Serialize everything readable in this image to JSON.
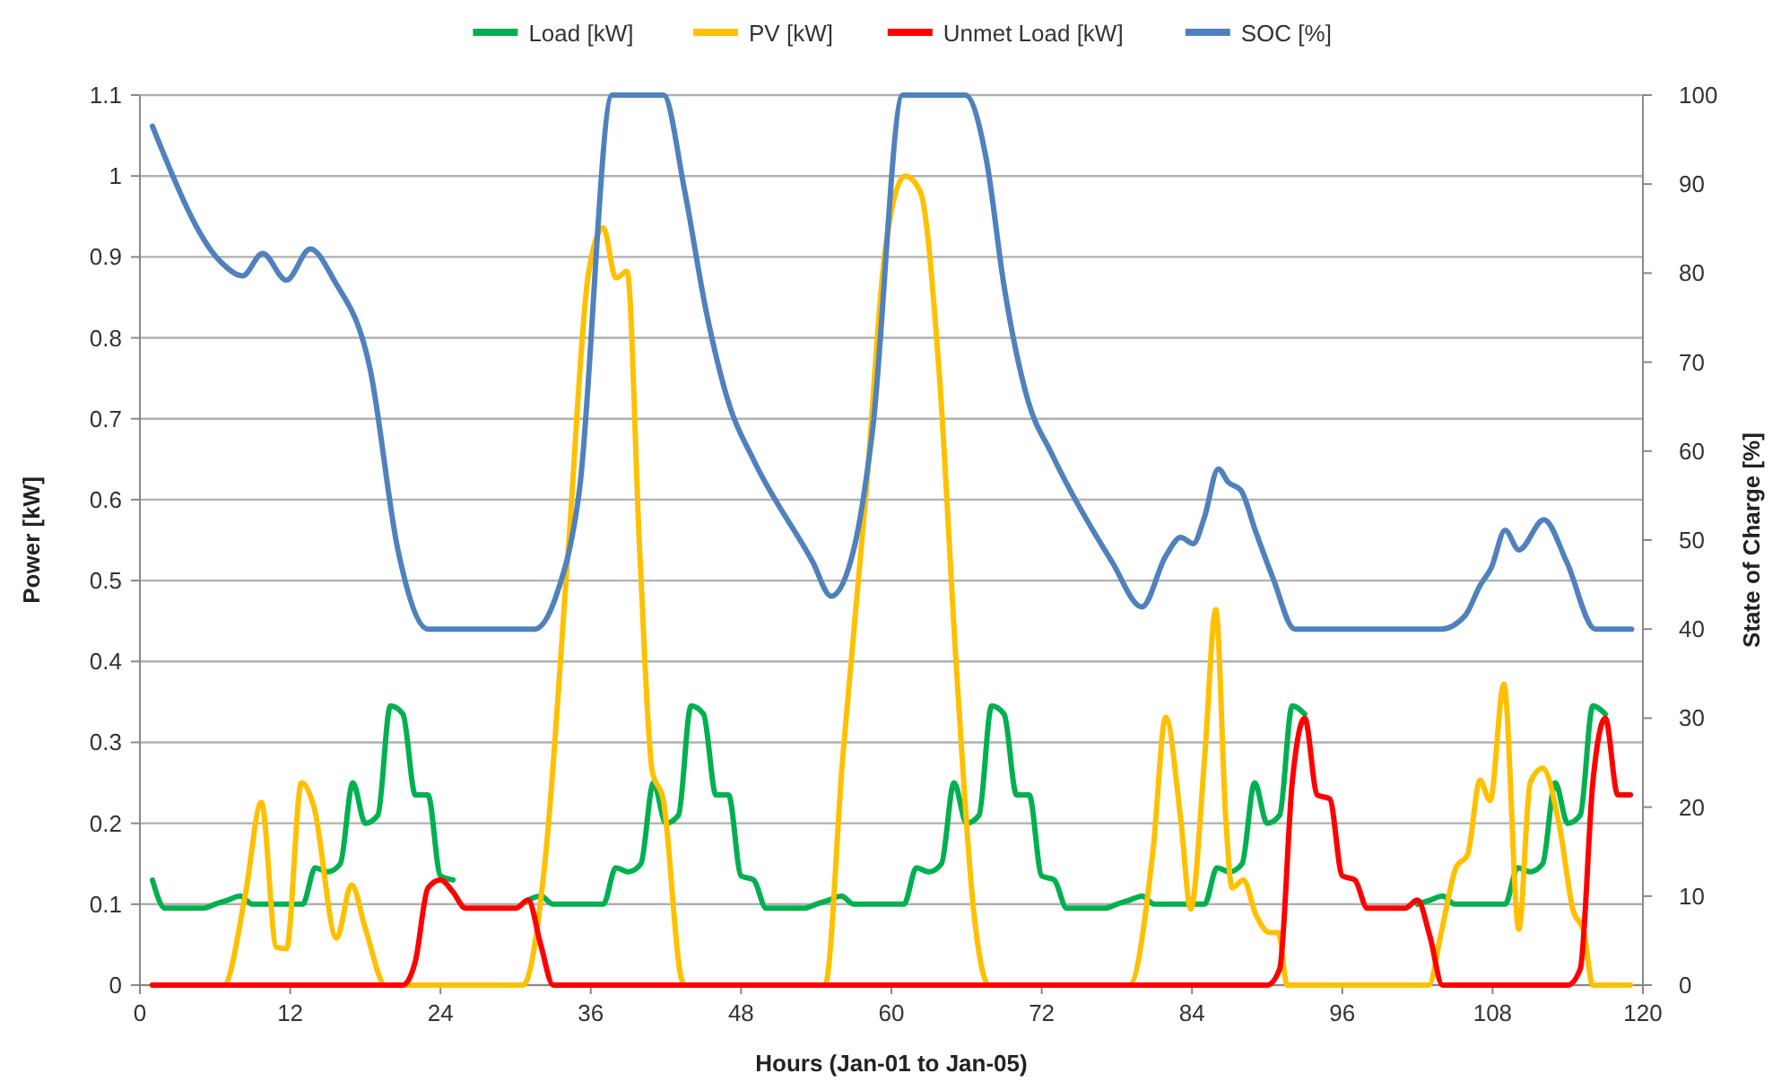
{
  "chart_data": {
    "type": "line",
    "xlabel": "Hours (Jan-01 to Jan-05)",
    "ylabel": "Power [kW]",
    "y2label": "State of Charge [%]",
    "x": [
      1,
      2,
      3,
      4,
      5,
      6,
      7,
      8,
      9,
      10,
      11,
      12,
      13,
      14,
      15,
      16,
      17,
      18,
      19,
      20,
      21,
      22,
      23,
      24,
      25,
      26,
      27,
      28,
      29,
      30,
      31,
      32,
      33,
      34,
      35,
      36,
      37,
      38,
      39,
      40,
      41,
      42,
      43,
      44,
      45,
      46,
      47,
      48,
      49,
      50,
      51,
      52,
      53,
      54,
      55,
      56,
      57,
      58,
      59,
      60,
      61,
      62,
      63,
      64,
      65,
      66,
      67,
      68,
      69,
      70,
      71,
      72,
      73,
      74,
      75,
      76,
      77,
      78,
      79,
      80,
      81,
      82,
      83,
      84,
      85,
      86,
      87,
      88,
      89,
      90,
      91,
      92,
      93,
      94,
      95,
      96,
      97,
      98,
      99,
      100,
      101,
      102,
      103,
      104,
      105,
      106,
      107,
      108,
      109,
      110,
      111,
      112,
      113,
      114,
      115,
      116,
      117,
      118,
      119
    ],
    "xlim": [
      0,
      120
    ],
    "xticks": [
      0,
      12,
      24,
      36,
      48,
      60,
      72,
      84,
      96,
      108,
      120
    ],
    "ylim": [
      0,
      1.1
    ],
    "yticks": [
      0,
      0.1,
      0.2,
      0.3,
      0.4,
      0.5,
      0.6,
      0.7,
      0.8,
      0.9,
      1,
      1.1
    ],
    "y2lim": [
      0,
      100
    ],
    "y2ticks": [
      0,
      10,
      20,
      30,
      40,
      50,
      60,
      70,
      80,
      90,
      100
    ],
    "grid": "y",
    "legend": "top",
    "marker": "none",
    "line_style": "solid",
    "series": [
      {
        "name": "Load [kW]",
        "color": "#00b050",
        "values": [
          0.13,
          0.095,
          0.095,
          0.095,
          0.095,
          0.1,
          0.105,
          0.11,
          0.1,
          0.1,
          0.1,
          0.1,
          0.1,
          0.145,
          0.14,
          0.15,
          0.25,
          0.2,
          0.21,
          0.345,
          0.335,
          0.235,
          0.235,
          0.135,
          0.13,
          null,
          null,
          null,
          null,
          null,
          0.105,
          0.11,
          0.1,
          0.1,
          0.1,
          0.1,
          0.1,
          0.145,
          0.14,
          0.15,
          0.25,
          0.2,
          0.21,
          0.345,
          0.335,
          0.235,
          0.235,
          0.135,
          0.13,
          0.095,
          0.095,
          0.095,
          0.095,
          0.1,
          0.105,
          0.11,
          0.1,
          0.1,
          0.1,
          0.1,
          0.1,
          0.145,
          0.14,
          0.15,
          0.25,
          0.2,
          0.21,
          0.345,
          0.335,
          0.235,
          0.235,
          0.135,
          0.13,
          0.095,
          0.095,
          0.095,
          0.095,
          0.1,
          0.105,
          0.11,
          0.1,
          0.1,
          0.1,
          0.1,
          0.1,
          0.145,
          0.14,
          0.15,
          0.25,
          0.2,
          0.21,
          0.345,
          0.335,
          null,
          null,
          null,
          null,
          null,
          null,
          null,
          null,
          0.1,
          0.105,
          0.11,
          0.1,
          0.1,
          0.1,
          0.1,
          0.1,
          0.145,
          0.14,
          0.15,
          0.25,
          0.2,
          0.21,
          0.345,
          0.335,
          null,
          null
        ]
      },
      {
        "name": "PV [kW]",
        "color": "#ffc000",
        "x": [
          1,
          6.7,
          8.4,
          9.7,
          10.9,
          11.7,
          12.9,
          13.9,
          15.7,
          16.9,
          18,
          19.6,
          30.6,
          32.3,
          34.2,
          35.8,
          37,
          38,
          38.9,
          39.9,
          40.9,
          41.8,
          43.2,
          43.5,
          54.7,
          56.1,
          58,
          59.5,
          61.1,
          62.3,
          63.8,
          65.2,
          66.6,
          67.8,
          79,
          80.9,
          81.9,
          83.1,
          83.9,
          85,
          85.9,
          86.7,
          87.2,
          88.1,
          89.1,
          90.2,
          90.9,
          91.6,
          102.9,
          103.9,
          105.1,
          106,
          107,
          107.8,
          108.9,
          110.1,
          111,
          112,
          113.4,
          114.4,
          115.3,
          116,
          119
        ],
        "values": [
          0,
          0,
          0.11,
          0.226,
          0.047,
          0.045,
          0.25,
          0.22,
          0.058,
          0.124,
          0.07,
          0,
          0,
          0.146,
          0.538,
          0.878,
          0.936,
          0.874,
          0.882,
          0.538,
          0.265,
          0.228,
          0.01,
          0,
          0,
          0.279,
          0.612,
          0.908,
          1,
          0.981,
          0.76,
          0.39,
          0.087,
          0,
          0,
          0.168,
          0.331,
          0.205,
          0.094,
          0.279,
          0.464,
          0.205,
          0.12,
          0.13,
          0.087,
          0.065,
          0.065,
          0,
          0,
          0.065,
          0.146,
          0.161,
          0.253,
          0.228,
          0.372,
          0.069,
          0.25,
          0.268,
          0.191,
          0.094,
          0.065,
          0,
          0
        ]
      },
      {
        "name": "Unmet Load [kW]",
        "color": "#ff0000",
        "values": [
          0,
          0,
          0,
          0,
          0,
          0,
          0,
          0,
          0,
          0,
          0,
          0,
          0,
          0,
          0,
          0,
          0,
          0,
          0,
          0,
          0,
          0.03,
          0.12,
          0.13,
          0.115,
          0.095,
          0.095,
          0.095,
          0.095,
          0.095,
          0.105,
          0.05,
          0,
          0,
          0,
          0,
          0,
          0,
          0,
          0,
          0,
          0,
          0,
          0,
          0,
          0,
          0,
          0,
          0,
          0,
          0,
          0,
          0,
          0,
          0,
          0,
          0,
          0,
          0,
          0,
          0,
          0,
          0,
          0,
          0,
          0,
          0,
          0,
          0,
          0,
          0,
          0,
          0,
          0,
          0,
          0,
          0,
          0,
          0,
          0,
          0,
          0,
          0,
          0,
          0,
          0,
          0,
          0,
          0,
          0,
          0.02,
          0.25,
          0.33,
          0.235,
          0.23,
          0.135,
          0.13,
          0.095,
          0.095,
          0.095,
          0.095,
          0.105,
          0.06,
          0,
          0,
          0,
          0,
          0,
          0,
          0,
          0,
          0,
          0,
          0,
          0.02,
          0.25,
          0.33,
          0.235,
          0.235
        ]
      },
      {
        "name": "SOC [%]",
        "color": "#4f81bd",
        "axis": "y2",
        "x": [
          1,
          6.5,
          8.2,
          9.8,
          11.7,
          13.6,
          15.5,
          18.4,
          20.6,
          23,
          31.5,
          33.2,
          35.1,
          37.7,
          41.8,
          43.5,
          45.2,
          47.1,
          49,
          53.7,
          55.2,
          57.1,
          58.5,
          60.9,
          65.9,
          67.6,
          69,
          70.9,
          72.8,
          77.6,
          80,
          81.9,
          83.1,
          84.1,
          85,
          86.1,
          86.9,
          87.9,
          89.1,
          90.5,
          92.2,
          103.9,
          105.8,
          107,
          107.9,
          109,
          110.1,
          112.1,
          113.9,
          116.2,
          119.1
        ],
        "values": [
          96.5,
          81.2,
          79.7,
          82.2,
          79.2,
          82.7,
          79.2,
          69.1,
          48.9,
          40,
          40,
          43.6,
          55.7,
          100,
          100,
          89.2,
          75.8,
          65,
          59,
          47.6,
          43.7,
          49.6,
          62.4,
          100,
          100,
          92.6,
          78.5,
          65.7,
          59.7,
          47.6,
          42.5,
          48.2,
          50.3,
          49.6,
          52.6,
          58,
          56.5,
          55.6,
          50.9,
          45.6,
          40,
          40,
          41.5,
          44.9,
          46.9,
          51.1,
          48.9,
          52.3,
          47.6,
          40,
          40
        ]
      }
    ]
  }
}
